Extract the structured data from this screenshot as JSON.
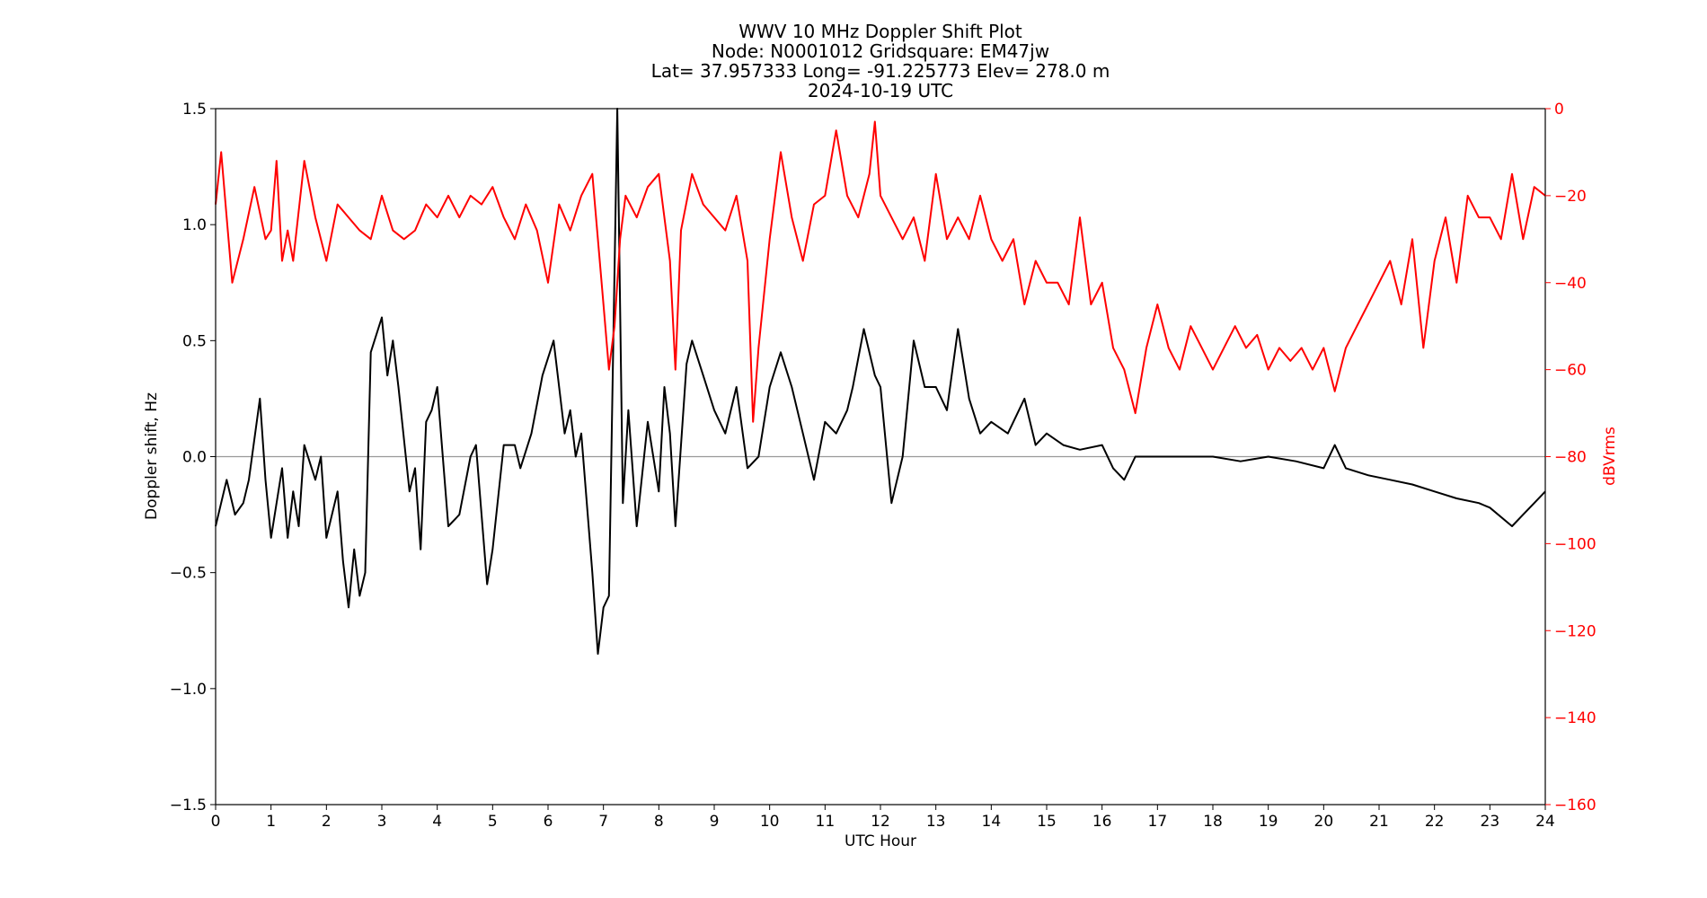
{
  "chart_data": {
    "type": "line",
    "title": [
      "WWV 10 MHz Doppler Shift Plot",
      "Node:  N0001012     Gridsquare:  EM47jw",
      "Lat= 37.957333    Long= -91.225773    Elev= 278.0 m",
      "2024-10-19  UTC"
    ],
    "xlabel": "UTC Hour",
    "ylabel_left": "Doppler shift, Hz",
    "ylabel_right": "dBVrms",
    "xlim": [
      0,
      24
    ],
    "ylim_left": [
      -1.5,
      1.5
    ],
    "ylim_right": [
      -160,
      0
    ],
    "x_ticks": [
      "0",
      "1",
      "2",
      "3",
      "4",
      "5",
      "6",
      "7",
      "8",
      "9",
      "10",
      "11",
      "12",
      "13",
      "14",
      "15",
      "16",
      "17",
      "18",
      "19",
      "20",
      "21",
      "22",
      "23",
      "24"
    ],
    "y_left_ticks": [
      {
        "v": 1.5,
        "label": "1.5"
      },
      {
        "v": 1.0,
        "label": "1.0"
      },
      {
        "v": 0.5,
        "label": "0.5"
      },
      {
        "v": 0.0,
        "label": "0.0"
      },
      {
        "v": -0.5,
        "label": "−0.5"
      },
      {
        "v": -1.0,
        "label": "−1.0"
      },
      {
        "v": -1.5,
        "label": "−1.5"
      }
    ],
    "y_right_ticks": [
      {
        "v": 0,
        "label": "0"
      },
      {
        "v": -20,
        "label": "−20"
      },
      {
        "v": -40,
        "label": "−40"
      },
      {
        "v": -60,
        "label": "−60"
      },
      {
        "v": -80,
        "label": "−80"
      },
      {
        "v": -100,
        "label": "−100"
      },
      {
        "v": -120,
        "label": "−120"
      },
      {
        "v": -140,
        "label": "−140"
      },
      {
        "v": -160,
        "label": "−160"
      }
    ],
    "zero_line": 0.0,
    "colors": {
      "doppler": "#000000",
      "power": "#ff0000",
      "zero_line": "#999999",
      "right_axis": "#ff0000"
    },
    "series": [
      {
        "axis": "left",
        "color": "#000000",
        "points": [
          [
            0.0,
            -0.3
          ],
          [
            0.2,
            -0.1
          ],
          [
            0.35,
            -0.25
          ],
          [
            0.5,
            -0.2
          ],
          [
            0.6,
            -0.1
          ],
          [
            0.8,
            0.25
          ],
          [
            0.9,
            -0.1
          ],
          [
            1.0,
            -0.35
          ],
          [
            1.2,
            -0.05
          ],
          [
            1.3,
            -0.35
          ],
          [
            1.4,
            -0.15
          ],
          [
            1.5,
            -0.3
          ],
          [
            1.6,
            0.05
          ],
          [
            1.8,
            -0.1
          ],
          [
            1.9,
            0.0
          ],
          [
            2.0,
            -0.35
          ],
          [
            2.2,
            -0.15
          ],
          [
            2.3,
            -0.45
          ],
          [
            2.4,
            -0.65
          ],
          [
            2.5,
            -0.4
          ],
          [
            2.6,
            -0.6
          ],
          [
            2.7,
            -0.5
          ],
          [
            2.8,
            0.45
          ],
          [
            3.0,
            0.6
          ],
          [
            3.1,
            0.35
          ],
          [
            3.2,
            0.5
          ],
          [
            3.3,
            0.3
          ],
          [
            3.5,
            -0.15
          ],
          [
            3.6,
            -0.05
          ],
          [
            3.7,
            -0.4
          ],
          [
            3.8,
            0.15
          ],
          [
            3.9,
            0.2
          ],
          [
            4.0,
            0.3
          ],
          [
            4.2,
            -0.3
          ],
          [
            4.4,
            -0.25
          ],
          [
            4.6,
            0.0
          ],
          [
            4.7,
            0.05
          ],
          [
            4.9,
            -0.55
          ],
          [
            5.0,
            -0.4
          ],
          [
            5.2,
            0.05
          ],
          [
            5.4,
            0.05
          ],
          [
            5.5,
            -0.05
          ],
          [
            5.7,
            0.1
          ],
          [
            5.9,
            0.35
          ],
          [
            6.1,
            0.5
          ],
          [
            6.3,
            0.1
          ],
          [
            6.4,
            0.2
          ],
          [
            6.5,
            0.0
          ],
          [
            6.6,
            0.1
          ],
          [
            6.8,
            -0.5
          ],
          [
            6.9,
            -0.85
          ],
          [
            7.0,
            -0.65
          ],
          [
            7.1,
            -0.6
          ],
          [
            7.25,
            1.5
          ],
          [
            7.35,
            -0.2
          ],
          [
            7.45,
            0.2
          ],
          [
            7.6,
            -0.3
          ],
          [
            7.8,
            0.15
          ],
          [
            8.0,
            -0.15
          ],
          [
            8.1,
            0.3
          ],
          [
            8.2,
            0.1
          ],
          [
            8.3,
            -0.3
          ],
          [
            8.4,
            0.05
          ],
          [
            8.5,
            0.4
          ],
          [
            8.6,
            0.5
          ],
          [
            8.8,
            0.35
          ],
          [
            9.0,
            0.2
          ],
          [
            9.2,
            0.1
          ],
          [
            9.4,
            0.3
          ],
          [
            9.6,
            -0.05
          ],
          [
            9.8,
            0.0
          ],
          [
            10.0,
            0.3
          ],
          [
            10.2,
            0.45
          ],
          [
            10.4,
            0.3
          ],
          [
            10.6,
            0.1
          ],
          [
            10.8,
            -0.1
          ],
          [
            11.0,
            0.15
          ],
          [
            11.2,
            0.1
          ],
          [
            11.4,
            0.2
          ],
          [
            11.5,
            0.3
          ],
          [
            11.7,
            0.55
          ],
          [
            11.9,
            0.35
          ],
          [
            12.0,
            0.3
          ],
          [
            12.2,
            -0.2
          ],
          [
            12.4,
            0.0
          ],
          [
            12.6,
            0.5
          ],
          [
            12.8,
            0.3
          ],
          [
            13.0,
            0.3
          ],
          [
            13.2,
            0.2
          ],
          [
            13.4,
            0.55
          ],
          [
            13.6,
            0.25
          ],
          [
            13.8,
            0.1
          ],
          [
            14.0,
            0.15
          ],
          [
            14.3,
            0.1
          ],
          [
            14.6,
            0.25
          ],
          [
            14.8,
            0.05
          ],
          [
            15.0,
            0.1
          ],
          [
            15.3,
            0.05
          ],
          [
            15.6,
            0.03
          ],
          [
            16.0,
            0.05
          ],
          [
            16.2,
            -0.05
          ],
          [
            16.4,
            -0.1
          ],
          [
            16.6,
            0.0
          ],
          [
            17.0,
            0.0
          ],
          [
            17.5,
            0.0
          ],
          [
            18.0,
            0.0
          ],
          [
            18.5,
            -0.02
          ],
          [
            19.0,
            0.0
          ],
          [
            19.5,
            -0.02
          ],
          [
            20.0,
            -0.05
          ],
          [
            20.2,
            0.05
          ],
          [
            20.4,
            -0.05
          ],
          [
            20.8,
            -0.08
          ],
          [
            21.2,
            -0.1
          ],
          [
            21.6,
            -0.12
          ],
          [
            22.0,
            -0.15
          ],
          [
            22.4,
            -0.18
          ],
          [
            22.8,
            -0.2
          ],
          [
            23.0,
            -0.22
          ],
          [
            23.4,
            -0.3
          ],
          [
            23.6,
            -0.25
          ],
          [
            23.8,
            -0.2
          ],
          [
            24.0,
            -0.15
          ]
        ]
      },
      {
        "axis": "right",
        "color": "#ff0000",
        "points": [
          [
            0.0,
            -22
          ],
          [
            0.1,
            -10
          ],
          [
            0.2,
            -25
          ],
          [
            0.3,
            -40
          ],
          [
            0.5,
            -30
          ],
          [
            0.7,
            -18
          ],
          [
            0.9,
            -30
          ],
          [
            1.0,
            -28
          ],
          [
            1.1,
            -12
          ],
          [
            1.2,
            -35
          ],
          [
            1.3,
            -28
          ],
          [
            1.4,
            -35
          ],
          [
            1.6,
            -12
          ],
          [
            1.8,
            -25
          ],
          [
            2.0,
            -35
          ],
          [
            2.2,
            -22
          ],
          [
            2.4,
            -25
          ],
          [
            2.6,
            -28
          ],
          [
            2.8,
            -30
          ],
          [
            3.0,
            -20
          ],
          [
            3.2,
            -28
          ],
          [
            3.4,
            -30
          ],
          [
            3.6,
            -28
          ],
          [
            3.8,
            -22
          ],
          [
            4.0,
            -25
          ],
          [
            4.2,
            -20
          ],
          [
            4.4,
            -25
          ],
          [
            4.6,
            -20
          ],
          [
            4.8,
            -22
          ],
          [
            5.0,
            -18
          ],
          [
            5.2,
            -25
          ],
          [
            5.4,
            -30
          ],
          [
            5.6,
            -22
          ],
          [
            5.8,
            -28
          ],
          [
            6.0,
            -40
          ],
          [
            6.2,
            -22
          ],
          [
            6.4,
            -28
          ],
          [
            6.6,
            -20
          ],
          [
            6.8,
            -15
          ],
          [
            7.0,
            -45
          ],
          [
            7.1,
            -60
          ],
          [
            7.2,
            -50
          ],
          [
            7.3,
            -30
          ],
          [
            7.4,
            -20
          ],
          [
            7.6,
            -25
          ],
          [
            7.8,
            -18
          ],
          [
            8.0,
            -15
          ],
          [
            8.2,
            -35
          ],
          [
            8.3,
            -60
          ],
          [
            8.4,
            -28
          ],
          [
            8.6,
            -15
          ],
          [
            8.8,
            -22
          ],
          [
            9.0,
            -25
          ],
          [
            9.2,
            -28
          ],
          [
            9.4,
            -20
          ],
          [
            9.6,
            -35
          ],
          [
            9.7,
            -72
          ],
          [
            9.8,
            -55
          ],
          [
            10.0,
            -30
          ],
          [
            10.2,
            -10
          ],
          [
            10.4,
            -25
          ],
          [
            10.6,
            -35
          ],
          [
            10.8,
            -22
          ],
          [
            11.0,
            -20
          ],
          [
            11.2,
            -5
          ],
          [
            11.4,
            -20
          ],
          [
            11.6,
            -25
          ],
          [
            11.8,
            -15
          ],
          [
            11.9,
            -3
          ],
          [
            12.0,
            -20
          ],
          [
            12.2,
            -25
          ],
          [
            12.4,
            -30
          ],
          [
            12.6,
            -25
          ],
          [
            12.8,
            -35
          ],
          [
            13.0,
            -15
          ],
          [
            13.2,
            -30
          ],
          [
            13.4,
            -25
          ],
          [
            13.6,
            -30
          ],
          [
            13.8,
            -20
          ],
          [
            14.0,
            -30
          ],
          [
            14.2,
            -35
          ],
          [
            14.4,
            -30
          ],
          [
            14.6,
            -45
          ],
          [
            14.8,
            -35
          ],
          [
            15.0,
            -40
          ],
          [
            15.2,
            -40
          ],
          [
            15.4,
            -45
          ],
          [
            15.6,
            -25
          ],
          [
            15.8,
            -45
          ],
          [
            16.0,
            -40
          ],
          [
            16.2,
            -55
          ],
          [
            16.4,
            -60
          ],
          [
            16.6,
            -70
          ],
          [
            16.8,
            -55
          ],
          [
            17.0,
            -45
          ],
          [
            17.2,
            -55
          ],
          [
            17.4,
            -60
          ],
          [
            17.6,
            -50
          ],
          [
            17.8,
            -55
          ],
          [
            18.0,
            -60
          ],
          [
            18.2,
            -55
          ],
          [
            18.4,
            -50
          ],
          [
            18.6,
            -55
          ],
          [
            18.8,
            -52
          ],
          [
            19.0,
            -60
          ],
          [
            19.2,
            -55
          ],
          [
            19.4,
            -58
          ],
          [
            19.6,
            -55
          ],
          [
            19.8,
            -60
          ],
          [
            20.0,
            -55
          ],
          [
            20.2,
            -65
          ],
          [
            20.4,
            -55
          ],
          [
            20.6,
            -50
          ],
          [
            20.8,
            -45
          ],
          [
            21.0,
            -40
          ],
          [
            21.2,
            -35
          ],
          [
            21.4,
            -45
          ],
          [
            21.6,
            -30
          ],
          [
            21.8,
            -55
          ],
          [
            22.0,
            -35
          ],
          [
            22.2,
            -25
          ],
          [
            22.4,
            -40
          ],
          [
            22.6,
            -20
          ],
          [
            22.8,
            -25
          ],
          [
            23.0,
            -25
          ],
          [
            23.2,
            -30
          ],
          [
            23.4,
            -15
          ],
          [
            23.6,
            -30
          ],
          [
            23.8,
            -18
          ],
          [
            24.0,
            -20
          ]
        ]
      }
    ]
  }
}
